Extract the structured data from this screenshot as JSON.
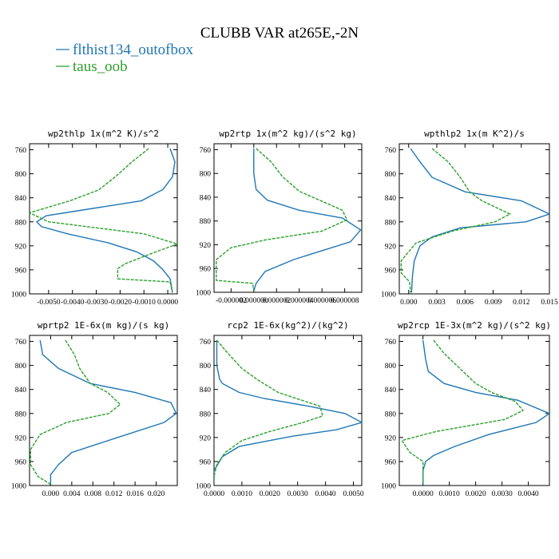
{
  "figure": {
    "title": "CLUBB VAR at265E,-2N",
    "legend": [
      {
        "label": "flthist134_outofbox",
        "color": "#1f77b4"
      },
      {
        "label": "taus_oob",
        "color": "#2ca02c"
      }
    ]
  },
  "chart_data": [
    {
      "type": "line",
      "title": "wp2thlp  1x(m^2 K)/s^2",
      "xlim": [
        -0.0058,
        0.0004
      ],
      "xticks": [
        -0.005,
        -0.004,
        -0.003,
        -0.002,
        -0.001,
        0.0
      ],
      "xtick_labels": [
        "-0.0050",
        "-0.0040",
        "-0.0030",
        "-0.0020",
        "-0.0010",
        "0.0000"
      ],
      "ylim": [
        1000,
        750
      ],
      "yticks": [
        760,
        800,
        840,
        880,
        920,
        960,
        1000
      ],
      "ytick_labels": [
        "760",
        "800",
        "840",
        "880",
        "920",
        "960",
        "1000"
      ],
      "series": [
        {
          "name": "flthist134_outofbox",
          "color": "#1f77b4",
          "dashed": false,
          "x": [
            0.0001,
            0.0003,
            0.0002,
            -0.0002,
            -0.0011,
            -0.004,
            -0.0051,
            -0.0055,
            -0.0053,
            -0.0042,
            -0.0025,
            -0.0013,
            -0.0006,
            -0.0002,
            0.0001,
            0.0002
          ],
          "y": [
            758,
            780,
            805,
            826,
            845,
            863,
            870,
            880,
            888,
            900,
            915,
            930,
            945,
            960,
            975,
            998
          ]
        },
        {
          "name": "taus_oob",
          "color": "#2ca02c",
          "dashed": true,
          "x": [
            -0.0008,
            -0.0015,
            -0.0022,
            -0.0029,
            -0.0041,
            -0.0058,
            -0.005,
            -0.001,
            0.0004,
            -0.0005,
            -0.0018,
            -0.0021,
            -0.0021,
            0.0001,
            0.0002
          ],
          "y": [
            758,
            780,
            805,
            827,
            845,
            865,
            880,
            900,
            917,
            930,
            950,
            958,
            975,
            980,
            998
          ]
        }
      ]
    },
    {
      "type": "line",
      "title": "wp2rtp  1x(m^2 kg)/(s^2 kg)",
      "xlim": [
        -3.5e-06,
        9.5e-06
      ],
      "xticks": [
        -2e-06,
        0.0,
        2e-06,
        4e-06,
        6e-06,
        8e-06
      ],
      "xtick_labels": [
        "-0.000002",
        "0.000000",
        "0.000002",
        "0.000004",
        "0.000006",
        "0.000008"
      ],
      "ylim": [
        1000,
        750
      ],
      "yticks": [
        760,
        800,
        840,
        880,
        920,
        960,
        1000
      ],
      "ytick_labels": [
        "760",
        "800",
        "840",
        "880",
        "920",
        "960",
        "1000"
      ],
      "series": [
        {
          "name": "flthist134_outofbox",
          "color": "#1f77b4",
          "dashed": false,
          "x": [
            0.0,
            0.0,
            2e-07,
            1.2e-06,
            4e-06,
            7.8e-06,
            9.4e-06,
            8.5e-06,
            6e-06,
            3.5e-06,
            1e-06,
            2e-07,
            0.0
          ],
          "y": [
            758,
            800,
            827,
            845,
            862,
            875,
            895,
            915,
            930,
            945,
            965,
            985,
            998
          ]
        },
        {
          "name": "taus_oob",
          "color": "#2ca02c",
          "dashed": true,
          "x": [
            2e-07,
            1.5e-06,
            2.5e-06,
            4e-06,
            7.8e-06,
            8.2e-06,
            6e-06,
            1e-06,
            -2e-06,
            -3.3e-06,
            -3.3e-06,
            -1e-07,
            0.0
          ],
          "y": [
            758,
            780,
            805,
            830,
            862,
            878,
            897,
            912,
            925,
            945,
            980,
            985,
            998
          ]
        }
      ]
    },
    {
      "type": "line",
      "title": "wpthlp2  1x(m K^2)/s",
      "xlim": [
        -0.001,
        0.015
      ],
      "xticks": [
        0.0,
        0.003,
        0.006,
        0.009,
        0.012,
        0.015
      ],
      "xtick_labels": [
        "0.000",
        "0.003",
        "0.006",
        "0.009",
        "0.012",
        "0.015"
      ],
      "ylim": [
        1000,
        750
      ],
      "yticks": [
        760,
        800,
        840,
        880,
        920,
        960,
        1000
      ],
      "ytick_labels": [
        "760",
        "800",
        "840",
        "880",
        "920",
        "960",
        "1000"
      ],
      "series": [
        {
          "name": "flthist134_outofbox",
          "color": "#1f77b4",
          "dashed": false,
          "x": [
            0.0002,
            0.0012,
            0.0025,
            0.006,
            0.012,
            0.015,
            0.0125,
            0.0055,
            0.0025,
            0.0012,
            0.0006,
            0.0004,
            0.0003
          ],
          "y": [
            758,
            780,
            806,
            830,
            845,
            867,
            880,
            890,
            905,
            920,
            945,
            970,
            998
          ]
        },
        {
          "name": "taus_oob",
          "color": "#2ca02c",
          "dashed": true,
          "x": [
            0.0025,
            0.0042,
            0.0055,
            0.0065,
            0.0078,
            0.0108,
            0.0092,
            0.0048,
            0.0008,
            -0.0008,
            -0.0008,
            0.0001,
            0.0002
          ],
          "y": [
            758,
            780,
            806,
            830,
            845,
            867,
            880,
            895,
            915,
            945,
            965,
            980,
            998
          ]
        }
      ]
    },
    {
      "type": "line",
      "title": "wprtp2  1E-6x(m kg)/(s kg)",
      "xlim": [
        -0.004,
        0.024
      ],
      "xticks": [
        0.0,
        0.004,
        0.008,
        0.012,
        0.016,
        0.02
      ],
      "xtick_labels": [
        "0.000",
        "0.004",
        "0.008",
        "0.012",
        "0.016",
        "0.020"
      ],
      "ylim": [
        1000,
        750
      ],
      "yticks": [
        760,
        800,
        840,
        880,
        920,
        960,
        1000
      ],
      "ytick_labels": [
        "760",
        "800",
        "840",
        "880",
        "920",
        "960",
        "1000"
      ],
      "series": [
        {
          "name": "flthist134_outofbox",
          "color": "#1f77b4",
          "dashed": false,
          "x": [
            -0.002,
            -0.0015,
            0.0015,
            0.0075,
            0.016,
            0.0228,
            0.0238,
            0.0215,
            0.012,
            0.004,
            0.0015,
            0.0,
            0.0
          ],
          "y": [
            758,
            782,
            805,
            830,
            845,
            862,
            880,
            895,
            922,
            945,
            965,
            982,
            998
          ]
        },
        {
          "name": "taus_oob",
          "color": "#2ca02c",
          "dashed": true,
          "x": [
            0.0028,
            0.0045,
            0.0055,
            0.0075,
            0.0108,
            0.0132,
            0.011,
            0.003,
            -0.002,
            -0.0038,
            -0.0038,
            -0.0024,
            0.0
          ],
          "y": [
            758,
            782,
            805,
            830,
            845,
            865,
            880,
            895,
            915,
            940,
            965,
            985,
            998
          ]
        }
      ]
    },
    {
      "type": "line",
      "title": "rcp2  1E-6x(kg^2)/(kg^2)",
      "xlim": [
        0.0,
        0.0053
      ],
      "xticks": [
        0.0,
        0.001,
        0.002,
        0.003,
        0.004,
        0.005
      ],
      "xtick_labels": [
        "0.0000",
        "0.0010",
        "0.0020",
        "0.0030",
        "0.0040",
        "0.0050"
      ],
      "ylim": [
        1000,
        750
      ],
      "yticks": [
        760,
        800,
        840,
        880,
        920,
        960,
        1000
      ],
      "ytick_labels": [
        "760",
        "800",
        "840",
        "880",
        "920",
        "960",
        "1000"
      ],
      "series": [
        {
          "name": "flthist134_outofbox",
          "color": "#1f77b4",
          "dashed": false,
          "x": [
            0.0001,
            0.0001,
            0.0002,
            0.0003,
            0.0009,
            0.0018,
            0.0034,
            0.0047,
            0.0053,
            0.0044,
            0.0028,
            0.0009,
            0.0003,
            0.0,
            0.0
          ],
          "y": [
            758,
            800,
            823,
            830,
            845,
            855,
            868,
            880,
            895,
            907,
            918,
            935,
            952,
            975,
            998
          ]
        },
        {
          "name": "taus_oob",
          "color": "#2ca02c",
          "dashed": true,
          "x": [
            0.0001,
            0.0005,
            0.001,
            0.0016,
            0.0023,
            0.0038,
            0.0039,
            0.0032,
            0.002,
            0.001,
            0.0004,
            0.0001,
            0.0,
            0.0
          ],
          "y": [
            758,
            780,
            805,
            825,
            845,
            868,
            884,
            895,
            910,
            925,
            945,
            965,
            985,
            998
          ]
        }
      ]
    },
    {
      "type": "line",
      "title": "wp2rcp  1E-3x(m^2 kg)/(s^2 kg)",
      "xlim": [
        -0.0009,
        0.0048
      ],
      "xticks": [
        0.0,
        0.001,
        0.002,
        0.003,
        0.004
      ],
      "xtick_labels": [
        "0.0000",
        "0.0010",
        "0.0020",
        "0.0030",
        "0.0040"
      ],
      "ylim": [
        1000,
        750
      ],
      "yticks": [
        760,
        800,
        840,
        880,
        920,
        960,
        1000
      ],
      "ytick_labels": [
        "760",
        "800",
        "840",
        "880",
        "920",
        "960",
        "1000"
      ],
      "series": [
        {
          "name": "flthist134_outofbox",
          "color": "#1f77b4",
          "dashed": false,
          "x": [
            0.0,
            0.0001,
            0.0002,
            0.0008,
            0.002,
            0.0036,
            0.0048,
            0.0043,
            0.0025,
            0.0012,
            0.0004,
            0.0001,
            0.0,
            0.0
          ],
          "y": [
            758,
            790,
            810,
            830,
            845,
            858,
            880,
            895,
            915,
            935,
            950,
            960,
            975,
            998
          ]
        },
        {
          "name": "taus_oob",
          "color": "#2ca02c",
          "dashed": true,
          "x": [
            0.0004,
            0.0008,
            0.0014,
            0.002,
            0.0026,
            0.0035,
            0.0038,
            0.0031,
            0.0005,
            -0.0008,
            -0.0005,
            0.0,
            0.0
          ],
          "y": [
            758,
            780,
            805,
            830,
            845,
            860,
            875,
            890,
            910,
            925,
            945,
            960,
            998
          ]
        }
      ]
    }
  ]
}
